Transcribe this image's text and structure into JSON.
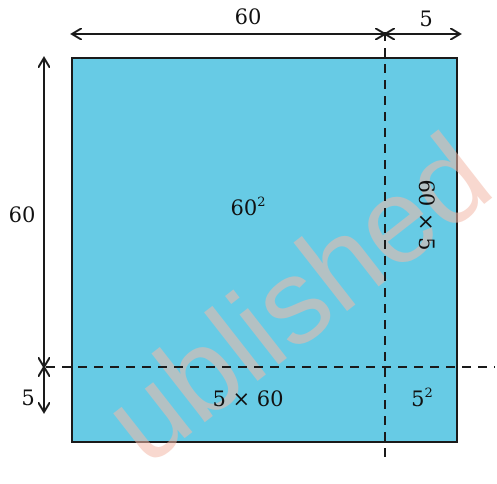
{
  "diagram": {
    "top_labels": {
      "left": "60",
      "right": "5"
    },
    "side_labels": {
      "top": "60",
      "bottom": "5"
    },
    "regions": {
      "big_square": {
        "base": "60",
        "exponent": "2"
      },
      "right_strip": "60 × 5",
      "bottom_strip": "5 × 60",
      "small_square": {
        "base": "5",
        "exponent": "2"
      }
    },
    "watermark": "ublished",
    "colors": {
      "fill": "#67cbe5",
      "stroke": "#1a1a1a",
      "watermark": "#f3b9a9"
    }
  }
}
